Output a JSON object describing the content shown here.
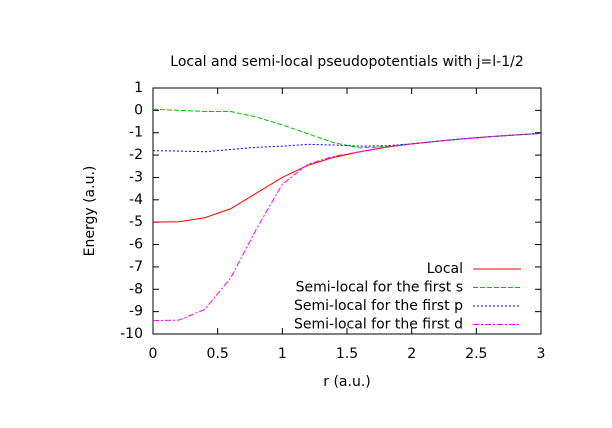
{
  "chart_data": {
    "type": "line",
    "title": "Local and semi-local pseudopotentials with j=l-1/2",
    "xlabel": "r (a.u.)",
    "ylabel": "Energy (a.u.)",
    "x": [
      0,
      0.2,
      0.4,
      0.6,
      0.8,
      1.0,
      1.2,
      1.4,
      1.6,
      1.8,
      2.0,
      2.2,
      2.4,
      2.6,
      2.8,
      3.0
    ],
    "series": [
      {
        "name": "Local",
        "color": "#ff0000",
        "dash": "none",
        "values": [
          -5,
          -4.98,
          -4.8,
          -4.4,
          -3.7,
          -3.0,
          -2.45,
          -2.1,
          -1.85,
          -1.65,
          -1.5,
          -1.38,
          -1.27,
          -1.18,
          -1.1,
          -1.03
        ]
      },
      {
        "name": "Semi-local for the first s",
        "color": "#00c000",
        "dash": "5,2",
        "values": [
          0.05,
          0.0,
          -0.05,
          -0.05,
          -0.3,
          -0.65,
          -1.05,
          -1.45,
          -1.68,
          -1.62,
          -1.5,
          -1.38,
          -1.27,
          -1.18,
          -1.1,
          -1.03
        ]
      },
      {
        "name": "Semi-local for the first p",
        "color": "#0000ff",
        "dash": "2,2",
        "values": [
          -1.8,
          -1.82,
          -1.85,
          -1.75,
          -1.65,
          -1.6,
          -1.52,
          -1.55,
          -1.6,
          -1.58,
          -1.5,
          -1.38,
          -1.27,
          -1.18,
          -1.1,
          -1.03
        ]
      },
      {
        "name": "Semi-local for the first d",
        "color": "#ff00ff",
        "dash": "6,2,2,2",
        "values": [
          -9.4,
          -9.38,
          -8.9,
          -7.5,
          -5.3,
          -3.3,
          -2.4,
          -2.05,
          -1.85,
          -1.65,
          -1.5,
          -1.38,
          -1.27,
          -1.18,
          -1.1,
          -1.03
        ]
      }
    ],
    "xlim": [
      0,
      3
    ],
    "ylim": [
      -10,
      1
    ],
    "xticks": [
      0,
      0.5,
      1,
      1.5,
      2,
      2.5,
      3
    ],
    "yticks": [
      -10,
      -9,
      -8,
      -7,
      -6,
      -5,
      -4,
      -3,
      -2,
      -1,
      0,
      1
    ],
    "legend": "bottom-right",
    "grid": false
  }
}
